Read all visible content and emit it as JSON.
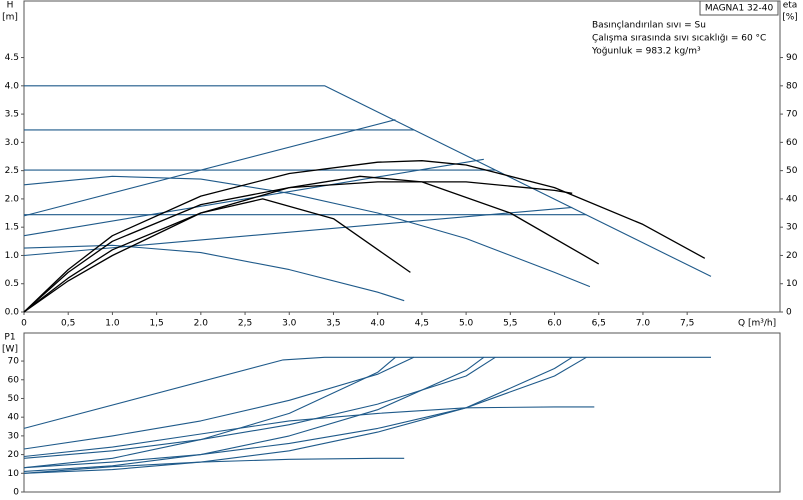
{
  "chart_data": [
    {
      "type": "line",
      "ylabel": [
        "H",
        "[m]"
      ],
      "y2label": [
        "eta",
        "[%]"
      ],
      "xlabel": "Q [m³/h]",
      "model": "MAGNA1 32-40",
      "annotations": [
        "Basınçlandırılan sıvı = Su",
        "Çalışma sırasında sıvı sıcaklığı = 60 °C",
        "Yoğunluk = 983.2 kg/m³"
      ],
      "xlim": [
        0,
        8.55
      ],
      "ylim": [
        0,
        5.5
      ],
      "y2lim": [
        0,
        110
      ],
      "xticks": [
        0,
        {
          "value": 0.5,
          "label": "0,5"
        },
        {
          "value": 1,
          "label": "1.0"
        },
        {
          "value": 1.5,
          "label": "1,5"
        },
        {
          "value": 2,
          "label": "2.0"
        },
        {
          "value": 2.5,
          "label": "2,5"
        },
        {
          "value": 3,
          "label": "3.0"
        },
        {
          "value": 3.5,
          "label": "3,5"
        },
        {
          "value": 4,
          "label": "4.0"
        },
        {
          "value": 4.5,
          "label": "4,5"
        },
        {
          "value": 5,
          "label": "5.0"
        },
        {
          "value": 5.5,
          "label": "5,5"
        },
        {
          "value": 6,
          "label": "6.0"
        },
        {
          "value": 6.5,
          "label": "6,5"
        },
        {
          "value": 7,
          "label": "7.0"
        },
        {
          "value": 7.5,
          "label": "7,5"
        }
      ],
      "yticks": [
        {
          "value": 0,
          "label": "0.0"
        },
        {
          "value": 0.5,
          "label": "0.5"
        },
        {
          "value": 1,
          "label": "1.0"
        },
        {
          "value": 1.5,
          "label": "1.5"
        },
        {
          "value": 2,
          "label": "2.0"
        },
        {
          "value": 2.5,
          "label": "2.5"
        },
        {
          "value": 3,
          "label": "3.0"
        },
        {
          "value": 3.5,
          "label": "3.5"
        },
        {
          "value": 4,
          "label": "4.0"
        },
        {
          "value": 4.5,
          "label": "4.5"
        }
      ],
      "y2ticks": [
        0,
        10,
        20,
        30,
        40,
        50,
        60,
        70,
        80,
        90
      ],
      "series": [
        {
          "color": "#1f5a8a",
          "x": [
            0,
            3.4,
            7.77
          ],
          "values": [
            4.0,
            4.0,
            0.63
          ]
        },
        {
          "color": "#1f5a8a",
          "x": [
            0,
            4.41
          ],
          "values": [
            3.22,
            3.22
          ]
        },
        {
          "color": "#1f5a8a",
          "x": [
            0,
            5.33
          ],
          "values": [
            2.51,
            2.51
          ]
        },
        {
          "color": "#1f5a8a",
          "x": [
            0,
            6.36
          ],
          "values": [
            1.72,
            1.72
          ]
        },
        {
          "color": "#1f5a8a",
          "x": [
            0,
            4.2
          ],
          "values": [
            1.7,
            3.4
          ]
        },
        {
          "color": "#1f5a8a",
          "x": [
            0,
            5.2
          ],
          "values": [
            1.35,
            2.7
          ]
        },
        {
          "color": "#1f5a8a",
          "x": [
            0,
            6.2
          ],
          "values": [
            1.0,
            1.85
          ]
        },
        {
          "color": "#1f5a8a",
          "x": [
            0,
            1,
            2,
            3,
            4,
            5,
            6,
            6.4
          ],
          "values": [
            2.25,
            2.4,
            2.35,
            2.1,
            1.75,
            1.3,
            0.7,
            0.45
          ]
        },
        {
          "color": "#1f5a8a",
          "x": [
            0,
            1,
            2,
            3,
            4,
            4.3
          ],
          "values": [
            1.13,
            1.18,
            1.05,
            0.75,
            0.35,
            0.2
          ]
        },
        {
          "color": "#000000",
          "axis": "y2",
          "x": [
            0,
            0.5,
            1,
            2,
            3,
            4,
            4.5,
            5,
            6,
            7,
            7.7
          ],
          "values": [
            0,
            15,
            27,
            41,
            49,
            53,
            53.5,
            52,
            44,
            31,
            19
          ]
        },
        {
          "color": "#000000",
          "axis": "y2",
          "x": [
            0,
            0.5,
            1,
            2,
            3,
            4,
            5,
            6,
            6.2
          ],
          "values": [
            0,
            14,
            25,
            38,
            44,
            46,
            46,
            43,
            42
          ]
        },
        {
          "color": "#000000",
          "axis": "y2",
          "x": [
            0,
            0.5,
            1,
            2,
            3,
            3.8,
            4.5,
            5.5,
            6.5
          ],
          "values": [
            0,
            12,
            22,
            35,
            44,
            48,
            46,
            35,
            17
          ]
        },
        {
          "color": "#000000",
          "axis": "y2",
          "x": [
            0,
            0.5,
            1,
            2,
            2.7,
            3.5,
            4.37
          ],
          "values": [
            0,
            11,
            20,
            35,
            40,
            33,
            14
          ]
        }
      ]
    },
    {
      "type": "line",
      "ylabel": [
        "P1",
        "[W]"
      ],
      "xlim": [
        0,
        8.55
      ],
      "ylim": [
        0,
        85
      ],
      "yticks": [
        0,
        10,
        20,
        30,
        40,
        50,
        60,
        70
      ],
      "series": [
        {
          "color": "#1f5a8a",
          "x": [
            0,
            2.93,
            3.4,
            7.77
          ],
          "values": [
            34,
            70.6,
            72,
            72
          ]
        },
        {
          "color": "#1f5a8a",
          "x": [
            0,
            1,
            2,
            3,
            4,
            4.41
          ],
          "values": [
            23,
            30,
            38,
            49,
            63,
            72
          ]
        },
        {
          "color": "#1f5a8a",
          "x": [
            0,
            1,
            2,
            3,
            4,
            5,
            5.33
          ],
          "values": [
            18,
            22,
            28,
            36,
            47,
            62,
            72
          ]
        },
        {
          "color": "#1f5a8a",
          "x": [
            0,
            1,
            2,
            3,
            4,
            5,
            6,
            6.36
          ],
          "values": [
            13,
            16,
            20,
            26,
            34,
            45,
            62,
            72
          ]
        },
        {
          "color": "#1f5a8a",
          "x": [
            0,
            1,
            2,
            3,
            4,
            4.2
          ],
          "values": [
            13,
            18,
            28,
            42,
            64,
            72
          ]
        },
        {
          "color": "#1f5a8a",
          "x": [
            0,
            1,
            2,
            3,
            4,
            5,
            5.2
          ],
          "values": [
            11,
            14,
            20,
            30,
            44,
            65,
            72
          ]
        },
        {
          "color": "#1f5a8a",
          "x": [
            0,
            1,
            2,
            3,
            4,
            5,
            6,
            6.2
          ],
          "values": [
            10,
            12,
            16,
            22,
            32,
            45,
            66,
            72
          ]
        },
        {
          "color": "#1f5a8a",
          "x": [
            0,
            1,
            2,
            3,
            4,
            5,
            6,
            6.45
          ],
          "values": [
            19,
            24,
            31,
            38,
            42,
            45,
            45.5,
            45.5
          ]
        },
        {
          "color": "#1f5a8a",
          "x": [
            0,
            1,
            2,
            3,
            4,
            4.3
          ],
          "values": [
            10,
            13.5,
            16,
            17.5,
            18,
            18
          ]
        }
      ]
    }
  ]
}
